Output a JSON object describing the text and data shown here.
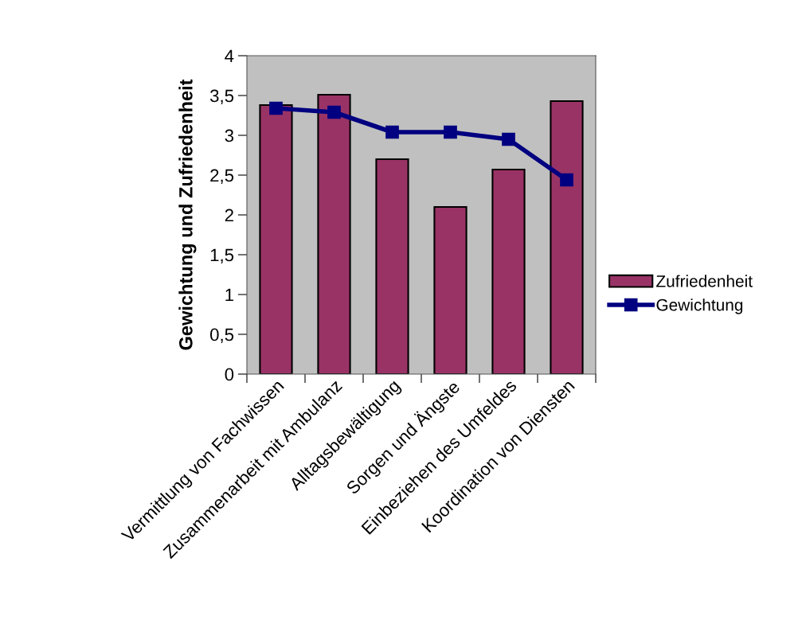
{
  "chart_data": {
    "type": "bar",
    "ylabel": "Gewichtung und Zufriedenheit",
    "categories": [
      "Vermittlung von Fachwissen",
      "Zusammenarbeit mit Ambulanz",
      "Alltagsbewältigung",
      "Sorgen und Ängste",
      "Einbeziehen des Umfeldes",
      "Koordination von Diensten"
    ],
    "series": [
      {
        "name": "Zufriedenheit",
        "color": "#993366",
        "values": [
          3.38,
          3.51,
          2.7,
          2.1,
          2.57,
          3.43
        ]
      },
      {
        "name": "Gewichtung",
        "type": "line",
        "color": "#000080",
        "marker": "square",
        "values": [
          3.34,
          3.29,
          3.04,
          3.04,
          2.95,
          2.44
        ]
      }
    ],
    "ylim": [
      0,
      4
    ],
    "yticks": [
      0,
      {
        "value": 0.5,
        "label": "0,5"
      },
      1,
      {
        "value": 1.5,
        "label": "1,5"
      },
      2,
      {
        "value": 2.5,
        "label": "2,5"
      },
      3,
      {
        "value": 3.5,
        "label": "3,5"
      },
      4
    ],
    "grid": false,
    "legend": "right"
  }
}
